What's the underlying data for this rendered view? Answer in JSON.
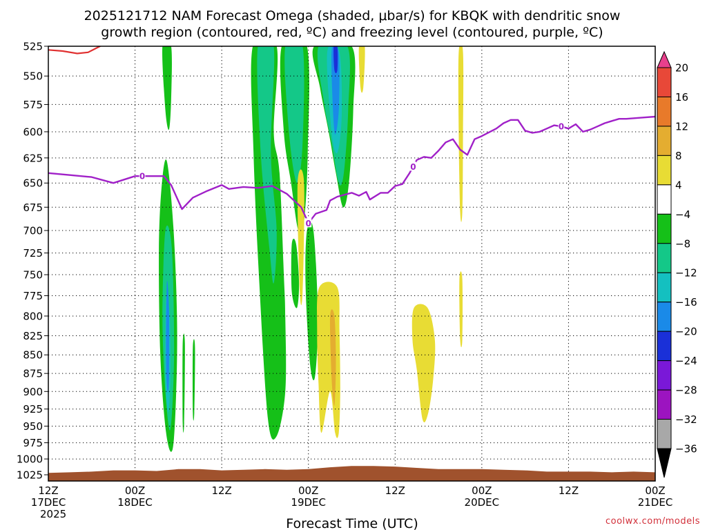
{
  "chart_data": {
    "type": "heatmap",
    "title_line1": "2025121712 NAM Forecast Omega (shaded, μbar/s) for KBQK with dendritic snow",
    "title_line2": "growth region (contoured, red, ºC) and freezing level (contoured, purple, ºC)",
    "xlabel": "Forecast Time (UTC)",
    "ylabel": "",
    "x_range_hours": [
      0,
      84
    ],
    "y_range_hpa": [
      525,
      1035
    ],
    "y_scale": "log-pressure (inverted)",
    "grid": true,
    "x_ticks": [
      {
        "h": 0,
        "l1": "12Z",
        "l2": "17DEC",
        "l3": "2025"
      },
      {
        "h": 12,
        "l1": "00Z",
        "l2": "18DEC",
        "l3": ""
      },
      {
        "h": 24,
        "l1": "12Z",
        "l2": "",
        "l3": ""
      },
      {
        "h": 36,
        "l1": "00Z",
        "l2": "19DEC",
        "l3": ""
      },
      {
        "h": 48,
        "l1": "12Z",
        "l2": "",
        "l3": ""
      },
      {
        "h": 60,
        "l1": "00Z",
        "l2": "20DEC",
        "l3": ""
      },
      {
        "h": 72,
        "l1": "12Z",
        "l2": "",
        "l3": ""
      },
      {
        "h": 84,
        "l1": "00Z",
        "l2": "21DEC",
        "l3": ""
      }
    ],
    "y_ticks": [
      525,
      550,
      575,
      600,
      625,
      650,
      675,
      700,
      725,
      750,
      775,
      800,
      825,
      850,
      875,
      900,
      925,
      950,
      975,
      1000,
      1025
    ],
    "colorbar": {
      "labels": [
        "20",
        "16",
        "12",
        "8",
        "4",
        "−4",
        "−8",
        "−12",
        "−16",
        "−20",
        "−24",
        "−28",
        "−32",
        "−36"
      ],
      "colors": [
        "#e8408c",
        "#e84838",
        "#e87a2a",
        "#e4ad30",
        "#e8dc34",
        "#ffffff",
        "#15c018",
        "#14c888",
        "#14c0c0",
        "#1a8ae8",
        "#1a30d8",
        "#7a18d8",
        "#9c14c0",
        "#a8a8a8",
        "#000000"
      ]
    },
    "omega_regions": [
      {
        "level": -8,
        "color": "#15c018",
        "pts": [
          [
            15.8,
            525
          ],
          [
            17.0,
            525
          ],
          [
            17.0,
            570
          ],
          [
            16.7,
            598
          ],
          [
            16.2,
            580
          ]
        ]
      },
      {
        "level": -8,
        "color": "#15c018",
        "pts": [
          [
            15.7,
            652
          ],
          [
            16.4,
            628
          ],
          [
            17.3,
            695
          ],
          [
            17.8,
            800
          ],
          [
            17.7,
            900
          ],
          [
            17.2,
            985
          ],
          [
            16.3,
            960
          ],
          [
            15.5,
            850
          ],
          [
            15.3,
            720
          ]
        ]
      },
      {
        "level": -12,
        "color": "#14c888",
        "pts": [
          [
            16.2,
            700
          ],
          [
            17.1,
            720
          ],
          [
            17.4,
            850
          ],
          [
            16.9,
            955
          ],
          [
            16.2,
            900
          ],
          [
            15.8,
            800
          ]
        ]
      },
      {
        "level": -12,
        "color": "#14c0c0",
        "pts": [
          [
            16.3,
            780
          ],
          [
            16.8,
            800
          ],
          [
            16.9,
            880
          ],
          [
            16.6,
            930
          ],
          [
            16.2,
            880
          ]
        ]
      },
      {
        "level": -16,
        "color": "#1a8ae8",
        "pts": [
          [
            16.4,
            760
          ],
          [
            16.7,
            790
          ],
          [
            16.7,
            880
          ],
          [
            16.5,
            900
          ],
          [
            16.3,
            860
          ]
        ]
      },
      {
        "level": -8,
        "color": "#15c018",
        "pts": [
          [
            18.6,
            835
          ],
          [
            18.9,
            835
          ],
          [
            18.8,
            945
          ],
          [
            18.6,
            945
          ]
        ]
      },
      {
        "level": -8,
        "color": "#15c018",
        "pts": [
          [
            20.0,
            840
          ],
          [
            20.3,
            840
          ],
          [
            20.2,
            930
          ],
          [
            20.0,
            930
          ]
        ]
      },
      {
        "level": -8,
        "color": "#15c018",
        "pts": [
          [
            28.3,
            525
          ],
          [
            31.6,
            525
          ],
          [
            31.2,
            600
          ],
          [
            32.0,
            640
          ],
          [
            32.6,
            750
          ],
          [
            32.8,
            800
          ],
          [
            32.8,
            900
          ],
          [
            31.6,
            965
          ],
          [
            30.4,
            940
          ],
          [
            29.2,
            760
          ],
          [
            28.4,
            620
          ]
        ]
      },
      {
        "level": -8,
        "color": "#15c018",
        "pts": [
          [
            33.7,
            715
          ],
          [
            34.3,
            715
          ],
          [
            34.7,
            760
          ],
          [
            34.4,
            790
          ],
          [
            33.7,
            770
          ]
        ]
      },
      {
        "level": -8,
        "color": "#15c018",
        "pts": [
          [
            32.3,
            525
          ],
          [
            35.8,
            525
          ],
          [
            35.9,
            620
          ],
          [
            35.4,
            690
          ],
          [
            34.6,
            700
          ],
          [
            33.6,
            650
          ],
          [
            32.6,
            600
          ]
        ]
      },
      {
        "level": -8,
        "color": "#15c018",
        "pts": [
          [
            35.8,
            700
          ],
          [
            36.7,
            700
          ],
          [
            37.3,
            800
          ],
          [
            36.9,
            880
          ],
          [
            36.2,
            860
          ],
          [
            35.6,
            760
          ]
        ]
      },
      {
        "level": -8,
        "color": "#15c018",
        "pts": [
          [
            36.8,
            525
          ],
          [
            42.0,
            525
          ],
          [
            42.2,
            580
          ],
          [
            41.6,
            650
          ],
          [
            40.8,
            675
          ],
          [
            39.8,
            640
          ],
          [
            38.8,
            600
          ],
          [
            37.6,
            560
          ]
        ]
      },
      {
        "level": -12,
        "color": "#14c888",
        "pts": [
          [
            29.0,
            525
          ],
          [
            31.2,
            525
          ],
          [
            30.8,
            620
          ],
          [
            31.6,
            700
          ],
          [
            31.2,
            760
          ],
          [
            30.6,
            720
          ],
          [
            29.4,
            620
          ]
        ]
      },
      {
        "level": -12,
        "color": "#14c888",
        "pts": [
          [
            32.8,
            525
          ],
          [
            35.2,
            525
          ],
          [
            35.2,
            610
          ],
          [
            34.4,
            650
          ],
          [
            33.3,
            600
          ]
        ]
      },
      {
        "level": -12,
        "color": "#14c888",
        "pts": [
          [
            37.4,
            525
          ],
          [
            41.4,
            525
          ],
          [
            41.5,
            580
          ],
          [
            40.9,
            640
          ],
          [
            40.2,
            650
          ],
          [
            39.2,
            610
          ],
          [
            38.2,
            575
          ]
        ]
      },
      {
        "level": -12,
        "color": "#14c0c0",
        "pts": [
          [
            38.6,
            530
          ],
          [
            40.3,
            530
          ],
          [
            40.6,
            585
          ],
          [
            40.0,
            620
          ],
          [
            39.2,
            600
          ]
        ]
      },
      {
        "level": -16,
        "color": "#1a8ae8",
        "pts": [
          [
            39.2,
            530
          ],
          [
            40.2,
            530
          ],
          [
            40.2,
            580
          ],
          [
            39.6,
            600
          ]
        ]
      },
      {
        "level": -20,
        "color": "#1a30d8",
        "pts": [
          [
            39.5,
            525
          ],
          [
            40.0,
            525
          ],
          [
            40.0,
            545
          ],
          [
            39.6,
            545
          ]
        ]
      },
      {
        "level": -16,
        "color": "#1a8ae8",
        "pts": [
          [
            38.0,
            760
          ],
          [
            38.9,
            790
          ],
          [
            38.6,
            820
          ],
          [
            38.1,
            800
          ]
        ]
      },
      {
        "level": 4,
        "color": "#e8dc34",
        "pts": [
          [
            34.5,
            650
          ],
          [
            35.4,
            650
          ],
          [
            35.2,
            770
          ],
          [
            34.8,
            770
          ]
        ]
      },
      {
        "level": 4,
        "color": "#e8dc34",
        "pts": [
          [
            43.0,
            525
          ],
          [
            43.8,
            525
          ],
          [
            43.6,
            560
          ],
          [
            43.2,
            560
          ]
        ]
      },
      {
        "level": 4,
        "color": "#e8dc34",
        "pts": [
          [
            37.5,
            765
          ],
          [
            40.0,
            765
          ],
          [
            40.3,
            820
          ],
          [
            40.4,
            900
          ],
          [
            40.2,
            960
          ],
          [
            39.7,
            960
          ],
          [
            39.0,
            900
          ],
          [
            37.8,
            960
          ],
          [
            37.4,
            890
          ],
          [
            37.2,
            820
          ]
        ]
      },
      {
        "level": 8,
        "color": "#e4ad30",
        "pts": [
          [
            39.0,
            800
          ],
          [
            39.6,
            800
          ],
          [
            39.8,
            860
          ],
          [
            39.6,
            920
          ],
          [
            39.2,
            880
          ]
        ]
      },
      {
        "level": 4,
        "color": "#e8dc34",
        "pts": [
          [
            50.6,
            790
          ],
          [
            52.5,
            790
          ],
          [
            53.5,
            830
          ],
          [
            53.3,
            880
          ],
          [
            52.6,
            930
          ],
          [
            51.8,
            940
          ],
          [
            51.0,
            870
          ],
          [
            50.4,
            830
          ]
        ]
      },
      {
        "level": 4,
        "color": "#e8dc34",
        "pts": [
          [
            56.8,
            530
          ],
          [
            57.4,
            530
          ],
          [
            57.4,
            600
          ],
          [
            57.3,
            680
          ],
          [
            57.0,
            680
          ],
          [
            56.8,
            600
          ]
        ]
      },
      {
        "level": 4,
        "color": "#e8dc34",
        "pts": [
          [
            56.9,
            755
          ],
          [
            57.3,
            755
          ],
          [
            57.3,
            830
          ],
          [
            57.0,
            830
          ]
        ]
      }
    ],
    "dgz_contour": {
      "color": "#e03030",
      "points": [
        [
          0,
          528
        ],
        [
          2,
          529
        ],
        [
          4,
          531
        ],
        [
          5.5,
          530
        ],
        [
          6.5,
          527
        ],
        [
          7.5,
          524
        ]
      ]
    },
    "freezing_level": {
      "color": "#a020c8",
      "label": "0",
      "label_x": [
        13.0,
        36.0,
        50.5,
        71.0
      ],
      "points": [
        [
          0,
          640
        ],
        [
          3,
          642
        ],
        [
          6,
          644
        ],
        [
          9,
          650
        ],
        [
          12,
          643
        ],
        [
          14,
          643
        ],
        [
          16,
          643
        ],
        [
          17,
          652
        ],
        [
          18.5,
          677
        ],
        [
          20,
          665
        ],
        [
          22,
          658
        ],
        [
          24,
          652
        ],
        [
          25,
          656
        ],
        [
          27,
          654
        ],
        [
          29,
          655
        ],
        [
          31,
          653
        ],
        [
          33,
          661
        ],
        [
          35,
          675
        ],
        [
          36,
          692
        ],
        [
          37,
          682
        ],
        [
          38.5,
          678
        ],
        [
          39,
          668
        ],
        [
          40,
          664
        ],
        [
          42,
          660
        ],
        [
          43,
          663
        ],
        [
          44,
          659
        ],
        [
          44.5,
          667
        ],
        [
          46,
          660
        ],
        [
          47,
          660
        ],
        [
          48,
          653
        ],
        [
          49,
          651
        ],
        [
          50,
          640
        ],
        [
          51,
          627
        ],
        [
          52,
          624
        ],
        [
          53,
          625
        ],
        [
          54,
          618
        ],
        [
          55,
          610
        ],
        [
          56,
          607
        ],
        [
          57,
          617
        ],
        [
          58,
          622
        ],
        [
          59,
          607
        ],
        [
          60,
          604
        ],
        [
          62,
          597
        ],
        [
          63,
          592
        ],
        [
          64,
          589
        ],
        [
          65,
          589
        ],
        [
          66,
          599
        ],
        [
          67,
          601
        ],
        [
          68,
          600
        ],
        [
          69,
          597
        ],
        [
          70,
          594
        ],
        [
          71,
          595
        ],
        [
          72,
          597
        ],
        [
          73,
          593
        ],
        [
          74,
          600
        ],
        [
          75,
          598
        ],
        [
          76,
          595
        ],
        [
          77,
          592
        ],
        [
          78,
          590
        ],
        [
          79,
          588
        ],
        [
          80,
          588
        ],
        [
          82,
          587
        ],
        [
          84,
          586
        ]
      ]
    },
    "terrain": {
      "color": "#a0522d",
      "top_points": [
        [
          0,
          1022
        ],
        [
          3,
          1021
        ],
        [
          6,
          1020
        ],
        [
          9,
          1018
        ],
        [
          12,
          1018
        ],
        [
          15,
          1019
        ],
        [
          18,
          1016
        ],
        [
          21,
          1016
        ],
        [
          24,
          1018
        ],
        [
          27,
          1017
        ],
        [
          30,
          1016
        ],
        [
          33,
          1017
        ],
        [
          36,
          1016
        ],
        [
          39,
          1013
        ],
        [
          42,
          1011
        ],
        [
          45,
          1011
        ],
        [
          48,
          1012
        ],
        [
          51,
          1014
        ],
        [
          54,
          1016
        ],
        [
          57,
          1016
        ],
        [
          60,
          1016
        ],
        [
          63,
          1017
        ],
        [
          66,
          1018
        ],
        [
          69,
          1020
        ],
        [
          72,
          1020
        ],
        [
          75,
          1020
        ],
        [
          78,
          1021
        ],
        [
          81,
          1020
        ],
        [
          84,
          1021
        ]
      ]
    }
  },
  "credit": "coolwx.com/models"
}
